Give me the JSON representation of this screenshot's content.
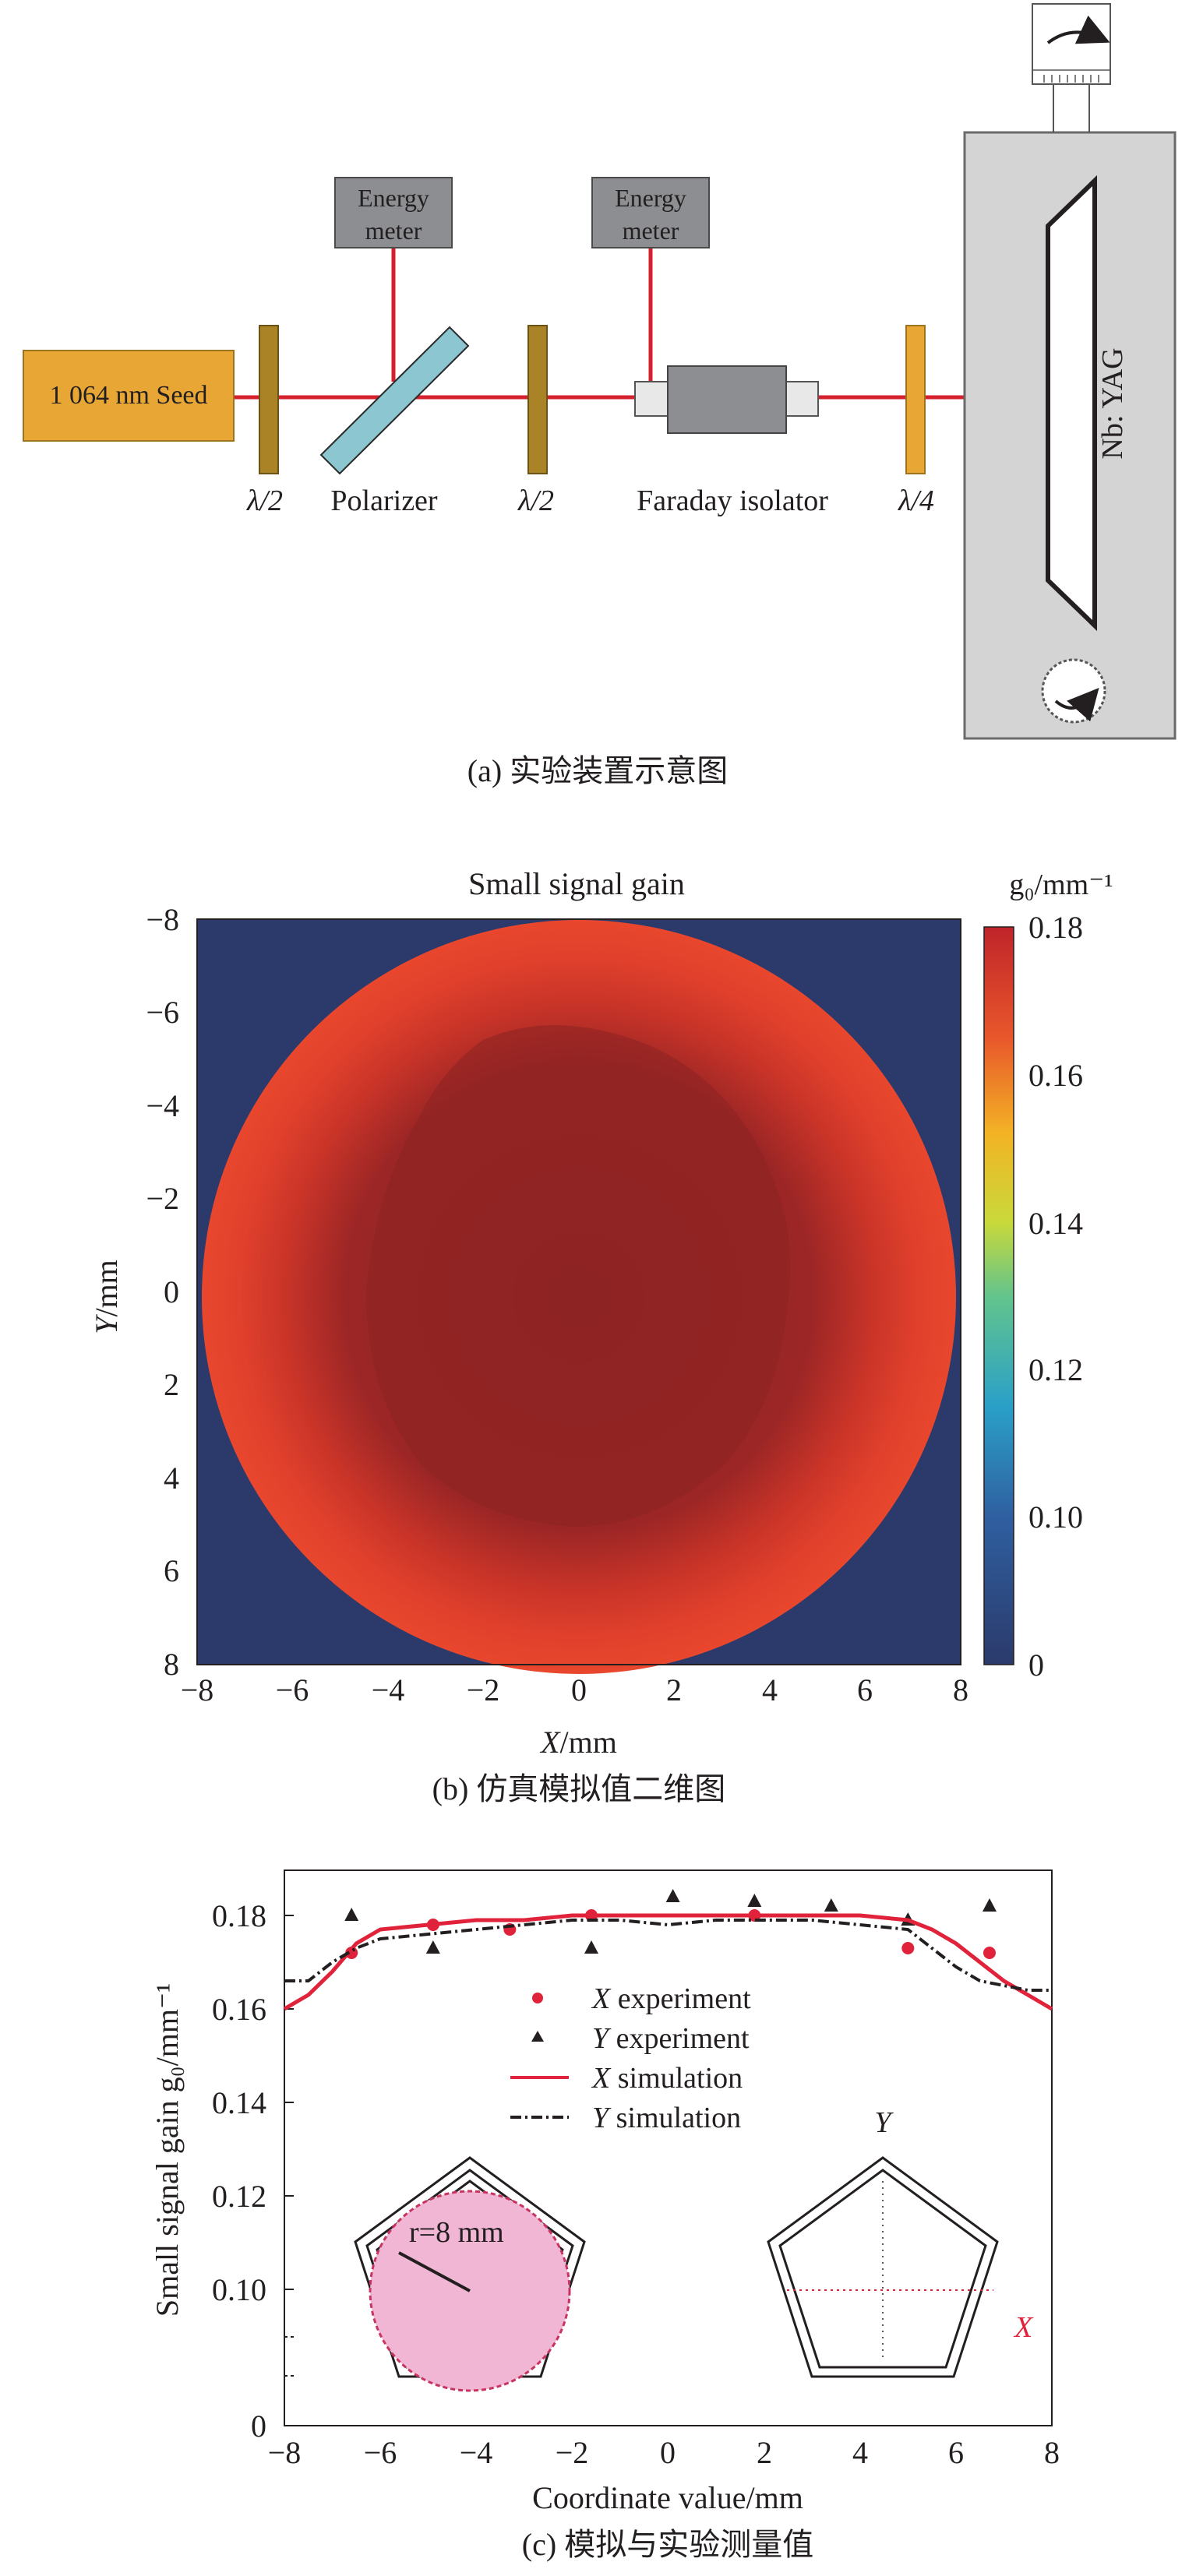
{
  "panel_a": {
    "seed_label": "1 064 nm Seed",
    "energy_meter_1": [
      "Energy",
      "meter"
    ],
    "energy_meter_2": [
      "Energy",
      "meter"
    ],
    "half_wave_1": "λ/2",
    "polarizer": "Polarizer",
    "half_wave_2": "λ/2",
    "faraday": "Faraday isolator",
    "quarter_wave": "λ/4",
    "crystal": "Nb: YAG",
    "caption": "(a) 实验装置示意图"
  },
  "panel_b": {
    "title": "Small signal gain",
    "colorbar_label": "g₀/mm⁻¹",
    "colorbar_ticks": [
      "0.18",
      "0.16",
      "0.14",
      "0.12",
      "0.10",
      "0"
    ],
    "y_ticks": [
      "−8",
      "−6",
      "−4",
      "−2",
      "0",
      "2",
      "4",
      "6",
      "8"
    ],
    "x_ticks": [
      "−8",
      "−6",
      "−4",
      "−2",
      "0",
      "2",
      "4",
      "6",
      "8"
    ],
    "ylabel_var": "Y",
    "ylabel_unit": "/mm",
    "xlabel_var": "X",
    "xlabel_unit": "/mm",
    "caption": "(b) 仿真模拟值二维图",
    "colors": {
      "background": "#2b3a6b",
      "disk_edge": "#e03a2c",
      "disk_core": "#8f2424"
    }
  },
  "panel_c": {
    "ylabel": "Small signal gain g₀/mm⁻¹",
    "xlabel": "Coordinate value/mm",
    "y_ticks": [
      "0.18",
      "0.16",
      "0.14",
      "0.12",
      "0.10",
      "0"
    ],
    "x_ticks": [
      "−8",
      "−6",
      "−4",
      "−2",
      "0",
      "2",
      "4",
      "6",
      "8"
    ],
    "legend": [
      {
        "var": "X",
        "text": " experiment"
      },
      {
        "var": "Y",
        "text": " experiment"
      },
      {
        "var": "X",
        "text": " simulation"
      },
      {
        "var": "Y",
        "text": " simulation"
      }
    ],
    "inset_left_label": "r=8 mm",
    "inset_right_axis_y": "Y",
    "inset_right_axis_x": "X",
    "caption": "(c) 模拟与实验测量值"
  },
  "chart_data": [
    {
      "type": "heatmap",
      "title": "Small signal gain",
      "xlabel": "X/mm",
      "ylabel": "Y/mm",
      "xlim": [
        -8,
        8
      ],
      "ylim": [
        8,
        -8
      ],
      "colorbar": {
        "label": "g₀/mm⁻¹",
        "range": [
          0,
          0.18
        ]
      },
      "region": "circle of radius 8 mm; gain ≈0.17 at rim, ≈0.18 in center; 0 outside"
    },
    {
      "type": "scatter",
      "xlabel": "Coordinate value/mm",
      "ylabel": "Small signal gain g₀/mm⁻¹",
      "xlim": [
        -8,
        8
      ],
      "ylim": [
        0.09,
        0.19
      ],
      "series": [
        {
          "name": "X experiment",
          "style": "circle",
          "color": "#e0223a",
          "x": [
            -6.6,
            -4.9,
            -3.3,
            -1.6,
            1.8,
            5.0,
            6.7
          ],
          "y": [
            0.172,
            0.178,
            0.177,
            0.18,
            0.18,
            0.173,
            0.172
          ]
        },
        {
          "name": "Y experiment",
          "style": "triangle",
          "color": "#231f20",
          "x": [
            -6.6,
            -4.9,
            -1.6,
            0.1,
            1.8,
            3.4,
            5.0,
            6.7
          ],
          "y": [
            0.18,
            0.173,
            0.173,
            0.184,
            0.183,
            0.182,
            0.179,
            0.182
          ]
        },
        {
          "name": "X simulation",
          "style": "solid",
          "color": "#e0223a",
          "x": [
            -8,
            -7.5,
            -7,
            -6.5,
            -6,
            -5,
            -4,
            -3,
            -2,
            -1,
            0,
            1,
            2,
            3,
            4,
            5,
            5.5,
            6,
            6.5,
            7,
            7.5,
            8
          ],
          "y": [
            0.16,
            0.163,
            0.168,
            0.174,
            0.177,
            0.178,
            0.179,
            0.179,
            0.18,
            0.18,
            0.18,
            0.18,
            0.18,
            0.18,
            0.18,
            0.179,
            0.177,
            0.174,
            0.17,
            0.166,
            0.163,
            0.16
          ]
        },
        {
          "name": "Y simulation",
          "style": "dash-dot",
          "color": "#231f20",
          "x": [
            -8,
            -7.5,
            -7,
            -6.5,
            -6,
            -5,
            -4,
            -3,
            -2,
            -1,
            0,
            1,
            2,
            3,
            4,
            5,
            5.5,
            6,
            6.5,
            7,
            7.5,
            8
          ],
          "y": [
            0.166,
            0.166,
            0.17,
            0.173,
            0.175,
            0.176,
            0.177,
            0.178,
            0.179,
            0.179,
            0.178,
            0.179,
            0.179,
            0.179,
            0.178,
            0.177,
            0.173,
            0.169,
            0.166,
            0.165,
            0.164,
            0.164
          ]
        }
      ]
    }
  ]
}
